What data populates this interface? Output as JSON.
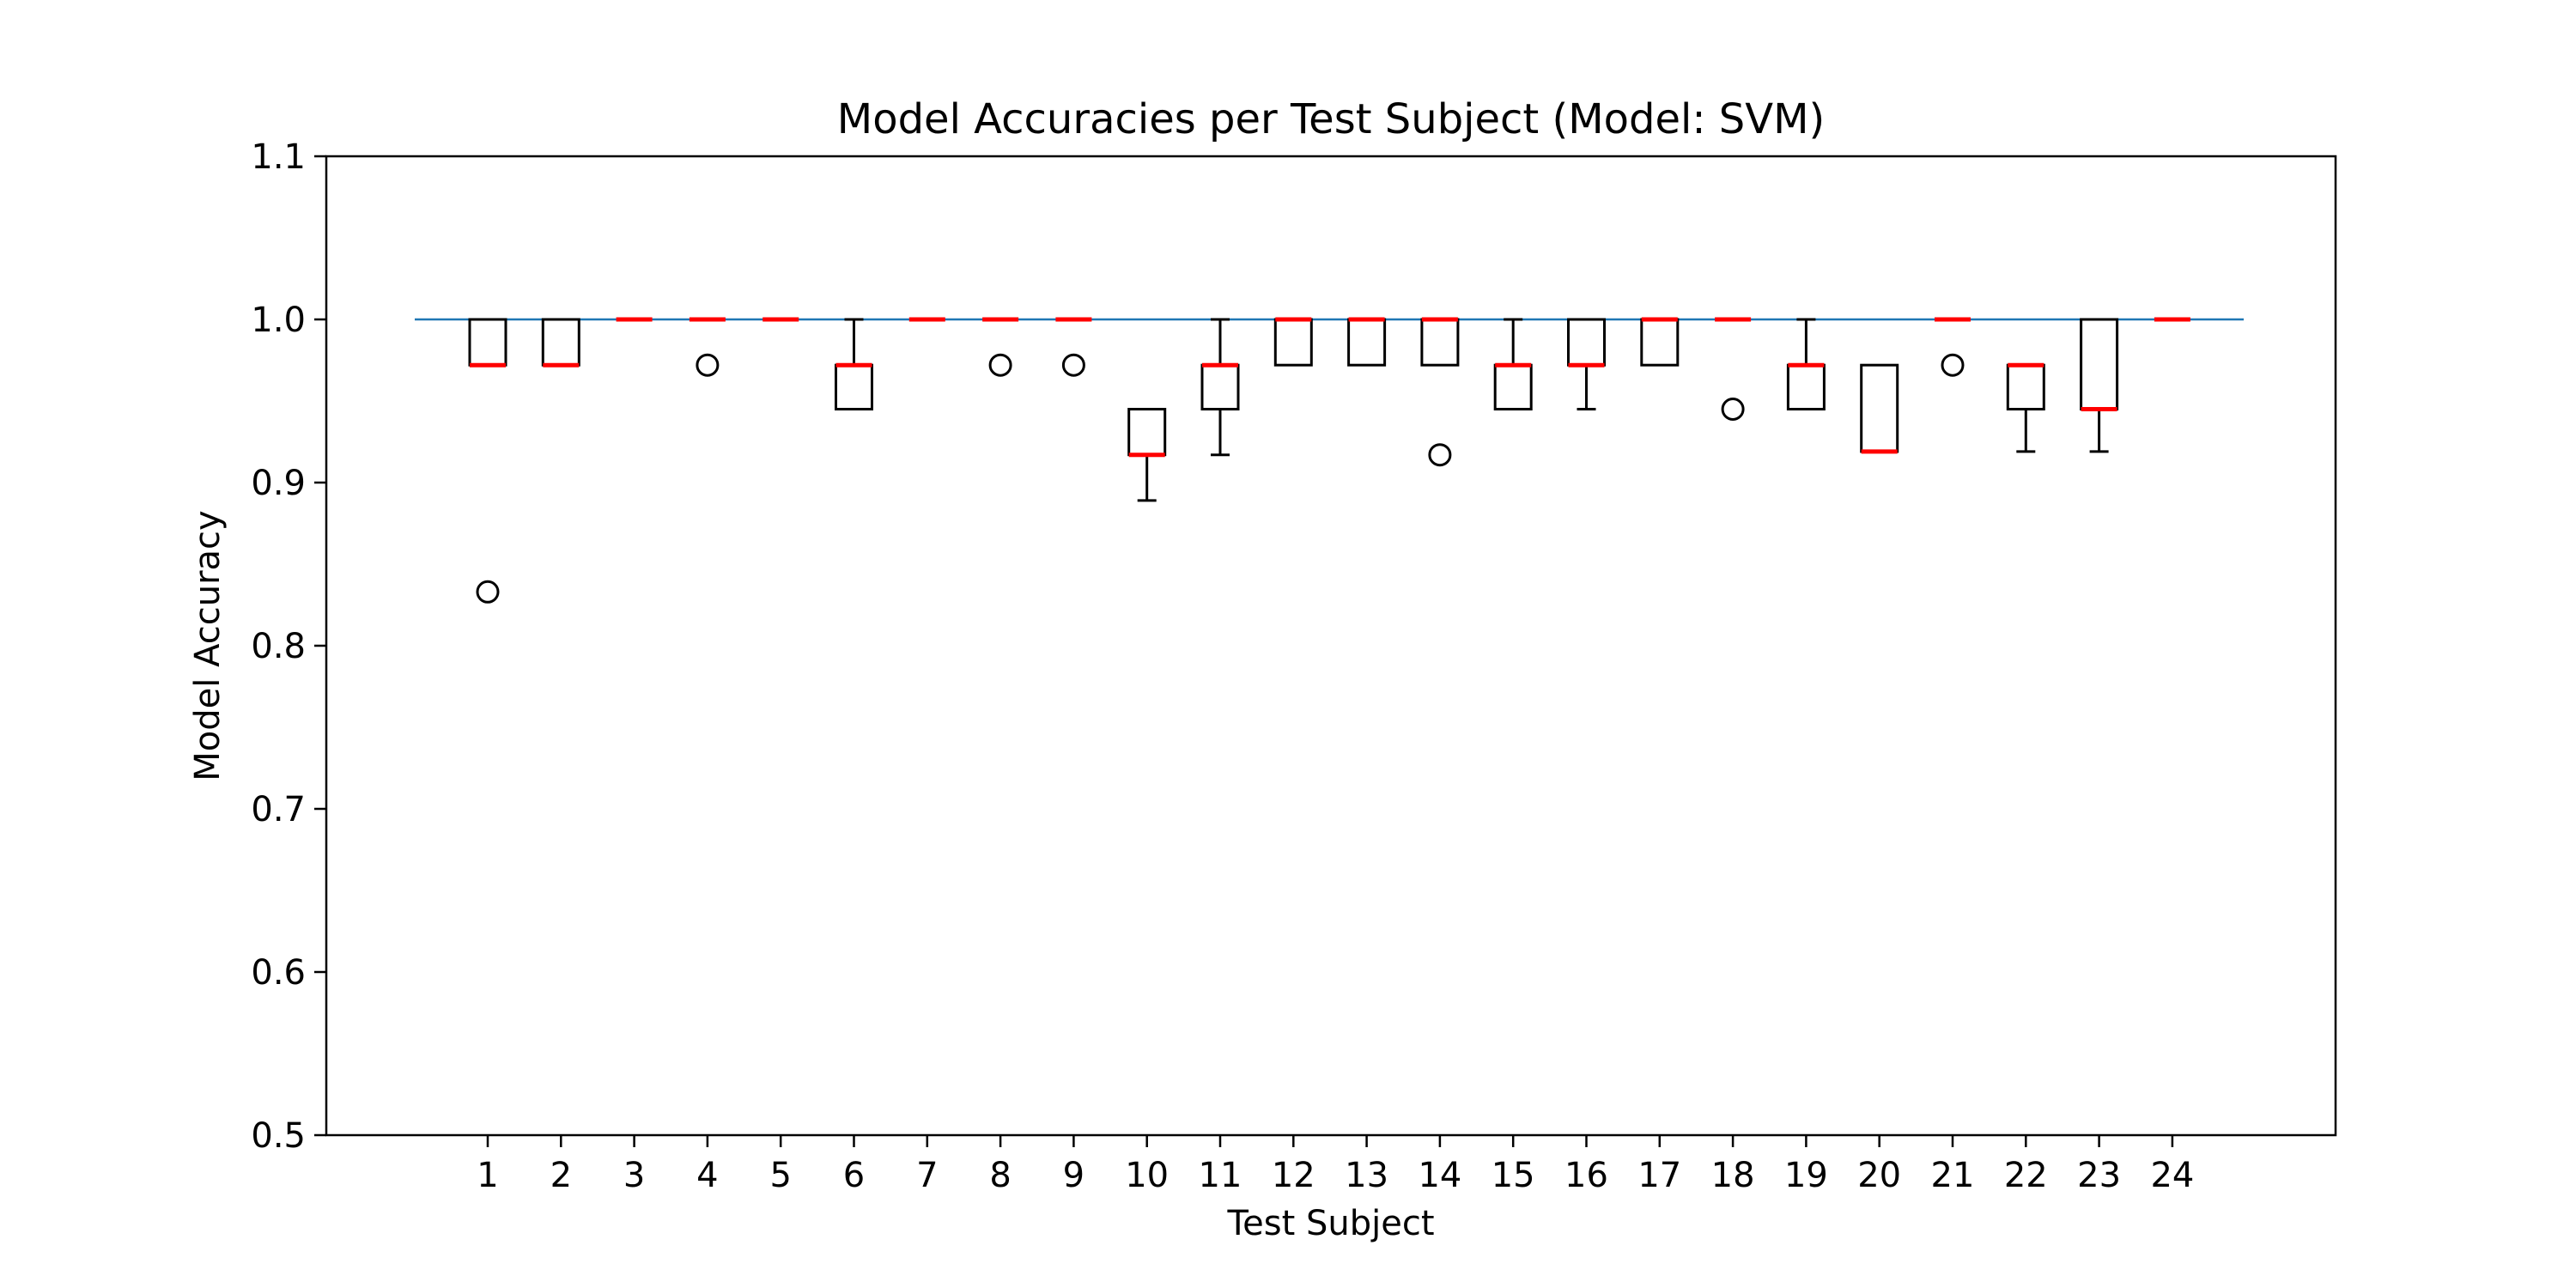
{
  "chart_data": {
    "type": "box",
    "title": "Model Accuracies per Test Subject (Model: SVM)",
    "xlabel": "Test Subject",
    "ylabel": "Model Accuracy",
    "ylim": [
      0.5,
      1.1
    ],
    "yticks": [
      0.5,
      0.6,
      0.7,
      0.8,
      0.9,
      1.0,
      1.1
    ],
    "ytick_labels": [
      "0.5",
      "0.6",
      "0.7",
      "0.8",
      "0.9",
      "1.0",
      "1.1"
    ],
    "grid": false,
    "legend": "none",
    "reference_line": {
      "y": 1.0,
      "color": "#1f77b4"
    },
    "colors": {
      "box": "#000000",
      "median": "#ff0000",
      "reference": "#1f77b4"
    },
    "categories": [
      "1",
      "2",
      "3",
      "4",
      "5",
      "6",
      "7",
      "8",
      "9",
      "10",
      "11",
      "12",
      "13",
      "14",
      "15",
      "16",
      "17",
      "18",
      "19",
      "20",
      "21",
      "22",
      "23",
      "24"
    ],
    "boxes": [
      {
        "q1": 0.972,
        "median": 0.972,
        "q3": 1.0,
        "whisker_low": 0.972,
        "whisker_high": 1.0,
        "outliers": [
          0.833
        ]
      },
      {
        "q1": 0.972,
        "median": 0.972,
        "q3": 1.0,
        "whisker_low": 0.972,
        "whisker_high": 1.0,
        "outliers": []
      },
      {
        "q1": 1.0,
        "median": 1.0,
        "q3": 1.0,
        "whisker_low": 1.0,
        "whisker_high": 1.0,
        "outliers": []
      },
      {
        "q1": 1.0,
        "median": 1.0,
        "q3": 1.0,
        "whisker_low": 1.0,
        "whisker_high": 1.0,
        "outliers": [
          0.972
        ]
      },
      {
        "q1": 1.0,
        "median": 1.0,
        "q3": 1.0,
        "whisker_low": 1.0,
        "whisker_high": 1.0,
        "outliers": []
      },
      {
        "q1": 0.945,
        "median": 0.972,
        "q3": 0.972,
        "whisker_low": 0.945,
        "whisker_high": 1.0,
        "outliers": []
      },
      {
        "q1": 1.0,
        "median": 1.0,
        "q3": 1.0,
        "whisker_low": 1.0,
        "whisker_high": 1.0,
        "outliers": []
      },
      {
        "q1": 1.0,
        "median": 1.0,
        "q3": 1.0,
        "whisker_low": 1.0,
        "whisker_high": 1.0,
        "outliers": [
          0.972
        ]
      },
      {
        "q1": 1.0,
        "median": 1.0,
        "q3": 1.0,
        "whisker_low": 1.0,
        "whisker_high": 1.0,
        "outliers": [
          0.972
        ]
      },
      {
        "q1": 0.917,
        "median": 0.917,
        "q3": 0.945,
        "whisker_low": 0.889,
        "whisker_high": 0.945,
        "outliers": []
      },
      {
        "q1": 0.945,
        "median": 0.972,
        "q3": 0.972,
        "whisker_low": 0.917,
        "whisker_high": 1.0,
        "outliers": []
      },
      {
        "q1": 0.972,
        "median": 1.0,
        "q3": 1.0,
        "whisker_low": 0.972,
        "whisker_high": 1.0,
        "outliers": []
      },
      {
        "q1": 0.972,
        "median": 1.0,
        "q3": 1.0,
        "whisker_low": 0.972,
        "whisker_high": 1.0,
        "outliers": []
      },
      {
        "q1": 0.972,
        "median": 1.0,
        "q3": 1.0,
        "whisker_low": 0.972,
        "whisker_high": 1.0,
        "outliers": [
          0.917
        ]
      },
      {
        "q1": 0.945,
        "median": 0.972,
        "q3": 0.972,
        "whisker_low": 0.945,
        "whisker_high": 1.0,
        "outliers": []
      },
      {
        "q1": 0.972,
        "median": 0.972,
        "q3": 1.0,
        "whisker_low": 0.945,
        "whisker_high": 1.0,
        "outliers": []
      },
      {
        "q1": 0.972,
        "median": 1.0,
        "q3": 1.0,
        "whisker_low": 0.972,
        "whisker_high": 1.0,
        "outliers": []
      },
      {
        "q1": 1.0,
        "median": 1.0,
        "q3": 1.0,
        "whisker_low": 1.0,
        "whisker_high": 1.0,
        "outliers": [
          0.945
        ]
      },
      {
        "q1": 0.945,
        "median": 0.972,
        "q3": 0.972,
        "whisker_low": 0.945,
        "whisker_high": 1.0,
        "outliers": []
      },
      {
        "q1": 0.919,
        "median": 0.919,
        "q3": 0.972,
        "whisker_low": 0.919,
        "whisker_high": 0.972,
        "outliers": []
      },
      {
        "q1": 1.0,
        "median": 1.0,
        "q3": 1.0,
        "whisker_low": 1.0,
        "whisker_high": 1.0,
        "outliers": [
          0.972
        ]
      },
      {
        "q1": 0.945,
        "median": 0.972,
        "q3": 0.972,
        "whisker_low": 0.919,
        "whisker_high": 0.972,
        "outliers": []
      },
      {
        "q1": 0.945,
        "median": 0.945,
        "q3": 1.0,
        "whisker_low": 0.919,
        "whisker_high": 1.0,
        "outliers": []
      },
      {
        "q1": 1.0,
        "median": 1.0,
        "q3": 1.0,
        "whisker_low": 1.0,
        "whisker_high": 1.0,
        "outliers": []
      }
    ]
  }
}
